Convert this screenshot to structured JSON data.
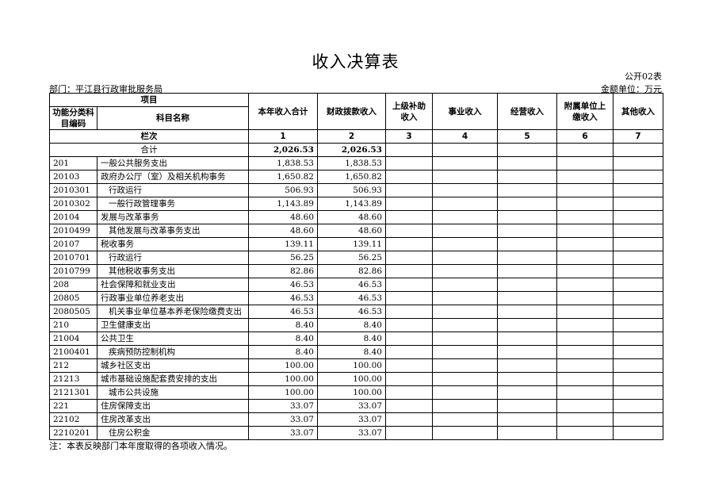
{
  "title": "收入决算表",
  "form_no": "公开02表",
  "department": "部门：平江县行政审批服务局",
  "unit": "金额单位：万元",
  "headers": {
    "item": "项目",
    "code": "功能分类科目编码",
    "name": "科目名称",
    "cols": [
      "本年收入合计",
      "财政拨款收入",
      "上级补助收入",
      "事业收入",
      "经营收入",
      "附属单位上缴收入",
      "其他收入"
    ],
    "seq_label": "栏次",
    "seq": [
      "1",
      "2",
      "3",
      "4",
      "5",
      "6",
      "7"
    ]
  },
  "total": {
    "label": "合计",
    "values": [
      "2,026.53",
      "2,026.53",
      "",
      "",
      "",
      "",
      ""
    ]
  },
  "rows": [
    {
      "code": "201",
      "name": "一般公共服务支出",
      "level": 1,
      "total": "1,838.53",
      "fiscal": "1,838.53"
    },
    {
      "code": "20103",
      "name": "政府办公厅（室）及相关机构事务",
      "level": 2,
      "total": "1,650.82",
      "fiscal": "1,650.82"
    },
    {
      "code": "2010301",
      "name": "行政运行",
      "level": 3,
      "total": "506.93",
      "fiscal": "506.93"
    },
    {
      "code": "2010302",
      "name": "一般行政管理事务",
      "level": 3,
      "total": "1,143.89",
      "fiscal": "1,143.89"
    },
    {
      "code": "20104",
      "name": "发展与改革事务",
      "level": 2,
      "total": "48.60",
      "fiscal": "48.60"
    },
    {
      "code": "2010499",
      "name": "其他发展与改革事务支出",
      "level": 3,
      "total": "48.60",
      "fiscal": "48.60"
    },
    {
      "code": "20107",
      "name": "税收事务",
      "level": 2,
      "total": "139.11",
      "fiscal": "139.11"
    },
    {
      "code": "2010701",
      "name": "行政运行",
      "level": 3,
      "total": "56.25",
      "fiscal": "56.25"
    },
    {
      "code": "2010799",
      "name": "其他税收事务支出",
      "level": 3,
      "total": "82.86",
      "fiscal": "82.86"
    },
    {
      "code": "208",
      "name": "社会保障和就业支出",
      "level": 1,
      "total": "46.53",
      "fiscal": "46.53"
    },
    {
      "code": "20805",
      "name": "行政事业单位养老支出",
      "level": 2,
      "total": "46.53",
      "fiscal": "46.53"
    },
    {
      "code": "2080505",
      "name": "机关事业单位基本养老保险缴费支出",
      "level": 3,
      "total": "46.53",
      "fiscal": "46.53"
    },
    {
      "code": "210",
      "name": "卫生健康支出",
      "level": 1,
      "total": "8.40",
      "fiscal": "8.40"
    },
    {
      "code": "21004",
      "name": "公共卫生",
      "level": 2,
      "total": "8.40",
      "fiscal": "8.40"
    },
    {
      "code": "2100401",
      "name": "疾病预防控制机构",
      "level": 3,
      "total": "8.40",
      "fiscal": "8.40"
    },
    {
      "code": "212",
      "name": "城乡社区支出",
      "level": 1,
      "total": "100.00",
      "fiscal": "100.00"
    },
    {
      "code": "21213",
      "name": "城市基础设施配套费安排的支出",
      "level": 2,
      "total": "100.00",
      "fiscal": "100.00"
    },
    {
      "code": "2121301",
      "name": "城市公共设施",
      "level": 3,
      "total": "100.00",
      "fiscal": "100.00"
    },
    {
      "code": "221",
      "name": "住房保障支出",
      "level": 1,
      "total": "33.07",
      "fiscal": "33.07"
    },
    {
      "code": "22102",
      "name": "住房改革支出",
      "level": 2,
      "total": "33.07",
      "fiscal": "33.07"
    },
    {
      "code": "2210201",
      "name": "住房公积金",
      "level": 3,
      "total": "33.07",
      "fiscal": "33.07"
    }
  ],
  "note": "注：本表反映部门本年度取得的各项收入情况。"
}
